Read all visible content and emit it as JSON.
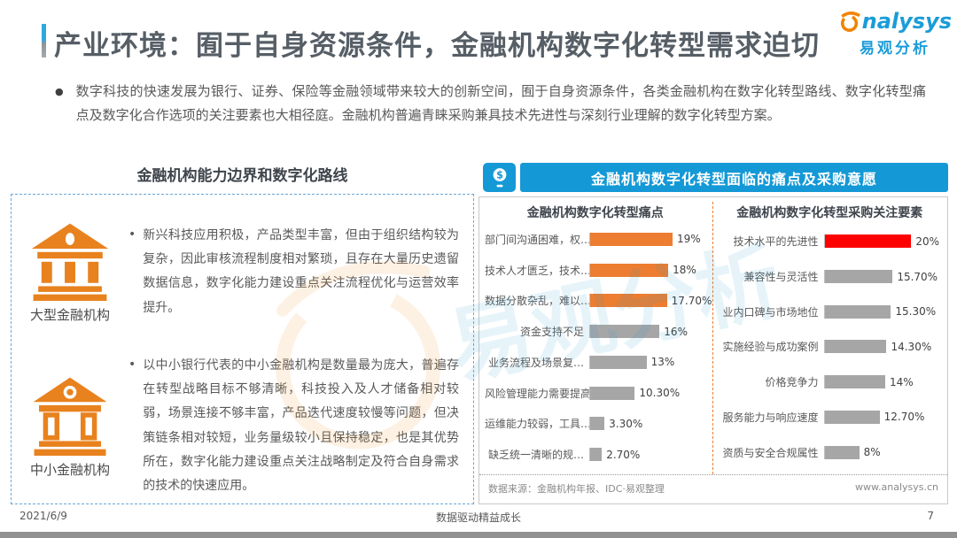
{
  "page": {
    "title": "产业环境：囿于自身资源条件，金融机构数字化转型需求迫切",
    "intro_bullet": "●",
    "intro": "数字科技的快速发展为银行、证券、保险等金融领域带来较大的创新空间，囿于自身资源条件，各类金融机构在数字化转型路线、数字化转型痛点及数字化合作选项的关注要素也大相径庭。金融机构普遍青睐采购兼具技术先进性与深刻行业理解的数字化转型方案。",
    "footer": {
      "date": "2021/6/9",
      "slogan": "数据驱动精益成长",
      "page_number": "7"
    }
  },
  "logo": {
    "brand_rest": "nalysys",
    "brand_cn": "易观分析",
    "swirl_icon": "analysys-swirl-icon"
  },
  "left_section": {
    "title": "金融机构能力边界和数字化路线",
    "items": [
      {
        "icon": "bank-solid-icon",
        "label": "大型金融机构",
        "bullet": "•",
        "text": "新兴科技应用积极，产品类型丰富，但由于组织结构较为复杂，因此审核流程制度相对繁琐，且存在大量历史遗留数据信息，数字化能力建设重点关注流程优化与运营效率提升。"
      },
      {
        "icon": "bank-outline-icon",
        "label": "中小金融机构",
        "bullet": "•",
        "text": "以中小银行代表的中小金融机构是数量最为庞大，普遍存在转型战略目标不够清晰，科技投入及人才储备相对较弱，场景连接不够丰富，产品迭代速度较慢等问题，但决策链条相对较短，业务量级较小且保持稳定，也是其优势所在，数字化能力建设重点关注战略制定及符合自身需求的技术的快速应用。"
      }
    ]
  },
  "right_section": {
    "header": "金融机构数字化转型面临的痛点及采购意愿",
    "header_icon": "dollar-coin-device-icon",
    "source": "数据来源：金融机构年报、IDC·易观整理",
    "website": "www.analysys.cn"
  },
  "colors": {
    "accent_blue": "#1499d6",
    "bar_orange": "#ed7d31",
    "bar_red": "#ff0000",
    "bar_gray": "#a6a6a6",
    "icon_orange": "#e8821e",
    "panel_dashed_border": "#6aa7d8"
  },
  "chart_data": [
    {
      "type": "bar",
      "orientation": "horizontal",
      "title": "金融机构数字化转型痛点",
      "categories": [
        "部门间沟通困难，权…",
        "技术人才匮乏，技术…",
        "数据分散杂乱，难以…",
        "资金支持不足",
        "业务流程及场景复…",
        "风险管理能力需要提高",
        "运维能力较弱，工具…",
        "缺乏统一清晰的规…"
      ],
      "values": [
        19,
        18,
        17.7,
        16,
        13,
        10.3,
        3.3,
        2.7
      ],
      "value_labels": [
        "19%",
        "18%",
        "17.70%",
        "16%",
        "13%",
        "10.30%",
        "3.30%",
        "2.70%"
      ],
      "bar_colors": [
        "#ed7d31",
        "#ed7d31",
        "#ed7d31",
        "#a6a6a6",
        "#a6a6a6",
        "#a6a6a6",
        "#a6a6a6",
        "#a6a6a6"
      ],
      "xlim": [
        0,
        20
      ],
      "grid": false,
      "legend": false
    },
    {
      "type": "bar",
      "orientation": "horizontal",
      "title": "金融机构数字化转型采购关注要素",
      "categories": [
        "技术水平的先进性",
        "兼容性与灵活性",
        "业内口碑与市场地位",
        "实施经验与成功案例",
        "价格竞争力",
        "服务能力与响应速度",
        "资质与安全合规属性"
      ],
      "values": [
        20,
        15.7,
        15.3,
        14.3,
        14,
        12.7,
        8
      ],
      "value_labels": [
        "20%",
        "15.70%",
        "15.30%",
        "14.30%",
        "14%",
        "12.70%",
        "8%"
      ],
      "bar_colors": [
        "#ff0000",
        "#a6a6a6",
        "#a6a6a6",
        "#a6a6a6",
        "#a6a6a6",
        "#a6a6a6",
        "#a6a6a6"
      ],
      "xlim": [
        0,
        20
      ],
      "grid": false,
      "legend": false
    }
  ]
}
